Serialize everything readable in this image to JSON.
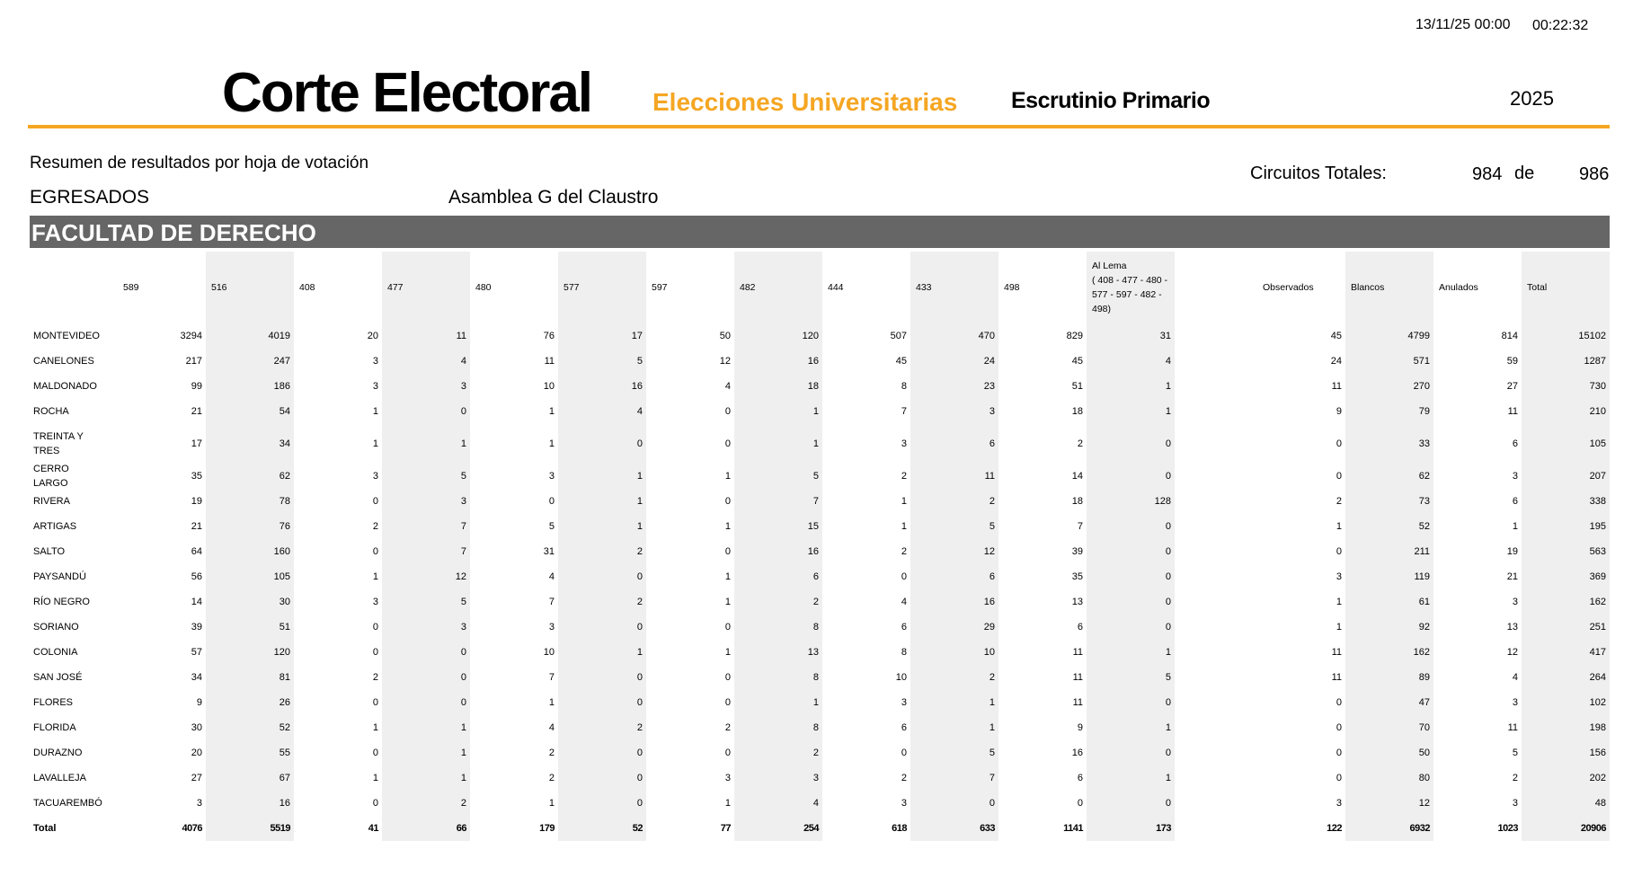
{
  "header": {
    "date": "13/11/25 00:00",
    "time": "00:22:32",
    "title": "Corte Electoral",
    "subtitle": "Elecciones Universitarias",
    "kind": "Escrutinio Primario",
    "year": "2025"
  },
  "info": {
    "summary": "Resumen de resultados por hoja de votación",
    "circuits_label": "Circuitos Totales:",
    "circuits_counted": "984",
    "circuits_of": "de",
    "circuits_total": "986",
    "claustro": "EGRESADOS",
    "organ": "Asamblea G del Claustro",
    "faculty": "FACULTAD DE DERECHO"
  },
  "table": {
    "columns": [
      "589",
      "516",
      "408",
      "477",
      "480",
      "577",
      "597",
      "482",
      "444",
      "433",
      "498",
      "Al Lema\n( 408 - 477 - 480 - 577 - 597 - 482 - 498)",
      "Observados",
      "Blancos",
      "Anulados",
      "Total"
    ],
    "rows": [
      [
        "MONTEVIDEO",
        3294,
        4019,
        20,
        11,
        76,
        17,
        50,
        120,
        507,
        470,
        829,
        31,
        45,
        4799,
        814,
        15102
      ],
      [
        "CANELONES",
        217,
        247,
        3,
        4,
        11,
        5,
        12,
        16,
        45,
        24,
        45,
        4,
        24,
        571,
        59,
        1287
      ],
      [
        "MALDONADO",
        99,
        186,
        3,
        3,
        10,
        16,
        4,
        18,
        8,
        23,
        51,
        1,
        11,
        270,
        27,
        730
      ],
      [
        "ROCHA",
        21,
        54,
        1,
        0,
        1,
        4,
        0,
        1,
        7,
        3,
        18,
        1,
        9,
        79,
        11,
        210
      ],
      [
        "TREINTA Y TRES",
        17,
        34,
        1,
        1,
        1,
        0,
        0,
        1,
        3,
        6,
        2,
        0,
        0,
        33,
        6,
        105
      ],
      [
        "CERRO LARGO",
        35,
        62,
        3,
        5,
        3,
        1,
        1,
        5,
        2,
        11,
        14,
        0,
        0,
        62,
        3,
        207
      ],
      [
        "RIVERA",
        19,
        78,
        0,
        3,
        0,
        1,
        0,
        7,
        1,
        2,
        18,
        128,
        2,
        73,
        6,
        338
      ],
      [
        "ARTIGAS",
        21,
        76,
        2,
        7,
        5,
        1,
        1,
        15,
        1,
        5,
        7,
        0,
        1,
        52,
        1,
        195
      ],
      [
        "SALTO",
        64,
        160,
        0,
        7,
        31,
        2,
        0,
        16,
        2,
        12,
        39,
        0,
        0,
        211,
        19,
        563
      ],
      [
        "PAYSANDÚ",
        56,
        105,
        1,
        12,
        4,
        0,
        1,
        6,
        0,
        6,
        35,
        0,
        3,
        119,
        21,
        369
      ],
      [
        "RÍO NEGRO",
        14,
        30,
        3,
        5,
        7,
        2,
        1,
        2,
        4,
        16,
        13,
        0,
        1,
        61,
        3,
        162
      ],
      [
        "SORIANO",
        39,
        51,
        0,
        3,
        3,
        0,
        0,
        8,
        6,
        29,
        6,
        0,
        1,
        92,
        13,
        251
      ],
      [
        "COLONIA",
        57,
        120,
        0,
        0,
        10,
        1,
        1,
        13,
        8,
        10,
        11,
        1,
        11,
        162,
        12,
        417
      ],
      [
        "SAN JOSÉ",
        34,
        81,
        2,
        0,
        7,
        0,
        0,
        8,
        10,
        2,
        11,
        5,
        11,
        89,
        4,
        264
      ],
      [
        "FLORES",
        9,
        26,
        0,
        0,
        1,
        0,
        0,
        1,
        3,
        1,
        11,
        0,
        0,
        47,
        3,
        102
      ],
      [
        "FLORIDA",
        30,
        52,
        1,
        1,
        4,
        2,
        2,
        8,
        6,
        1,
        9,
        1,
        0,
        70,
        11,
        198
      ],
      [
        "DURAZNO",
        20,
        55,
        0,
        1,
        2,
        0,
        0,
        2,
        0,
        5,
        16,
        0,
        0,
        50,
        5,
        156
      ],
      [
        "LAVALLEJA",
        27,
        67,
        1,
        1,
        2,
        0,
        3,
        3,
        2,
        7,
        6,
        1,
        0,
        80,
        2,
        202
      ],
      [
        "TACUAREMBÓ",
        3,
        16,
        0,
        2,
        1,
        0,
        1,
        4,
        3,
        0,
        0,
        0,
        3,
        12,
        3,
        48
      ],
      [
        "Total",
        4076,
        5519,
        41,
        66,
        179,
        52,
        77,
        254,
        618,
        633,
        1141,
        173,
        122,
        6932,
        1023,
        20906
      ]
    ]
  }
}
